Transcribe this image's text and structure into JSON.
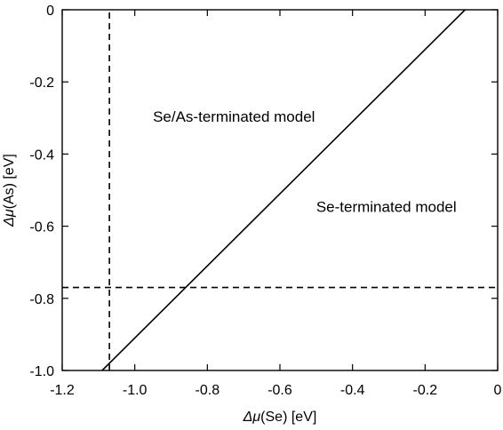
{
  "chart_data": {
    "type": "line",
    "xlim": [
      -1.2,
      0
    ],
    "ylim": [
      -1.0,
      0
    ],
    "xticks": [
      -1.2,
      -1.0,
      -0.8,
      -0.6,
      -0.4,
      -0.2,
      0
    ],
    "yticks": [
      0,
      -0.2,
      -0.4,
      -0.6,
      -0.8,
      -1.0
    ],
    "xtick_labels": [
      "-1.2",
      "-1.0",
      "-0.8",
      "-0.6",
      "-0.4",
      "-0.2",
      "0"
    ],
    "ytick_labels": [
      "0",
      "-0.2",
      "-0.4",
      "-0.6",
      "-0.8",
      "-1.0"
    ],
    "xlabel": {
      "symbol": "Δμ",
      "rest": "(Se) [eV]"
    },
    "ylabel": {
      "symbol": "Δμ",
      "rest": "(As) [eV]"
    },
    "grid": false,
    "legend": "none",
    "series": [
      {
        "style": "solid",
        "x": [
          -1.09,
          -0.09
        ],
        "y": [
          -1.0,
          0
        ]
      },
      {
        "style": "dashed",
        "x": [
          -1.07,
          -1.07
        ],
        "y": [
          -1.0,
          0
        ]
      },
      {
        "style": "dashed",
        "x": [
          -1.2,
          0
        ],
        "y": [
          -0.77,
          -0.77
        ]
      }
    ],
    "annotations": [
      {
        "text": "Se/As-terminated model",
        "x": -0.95,
        "y": -0.31
      },
      {
        "text": "Se-terminated model",
        "x": -0.5,
        "y": -0.56
      }
    ]
  }
}
